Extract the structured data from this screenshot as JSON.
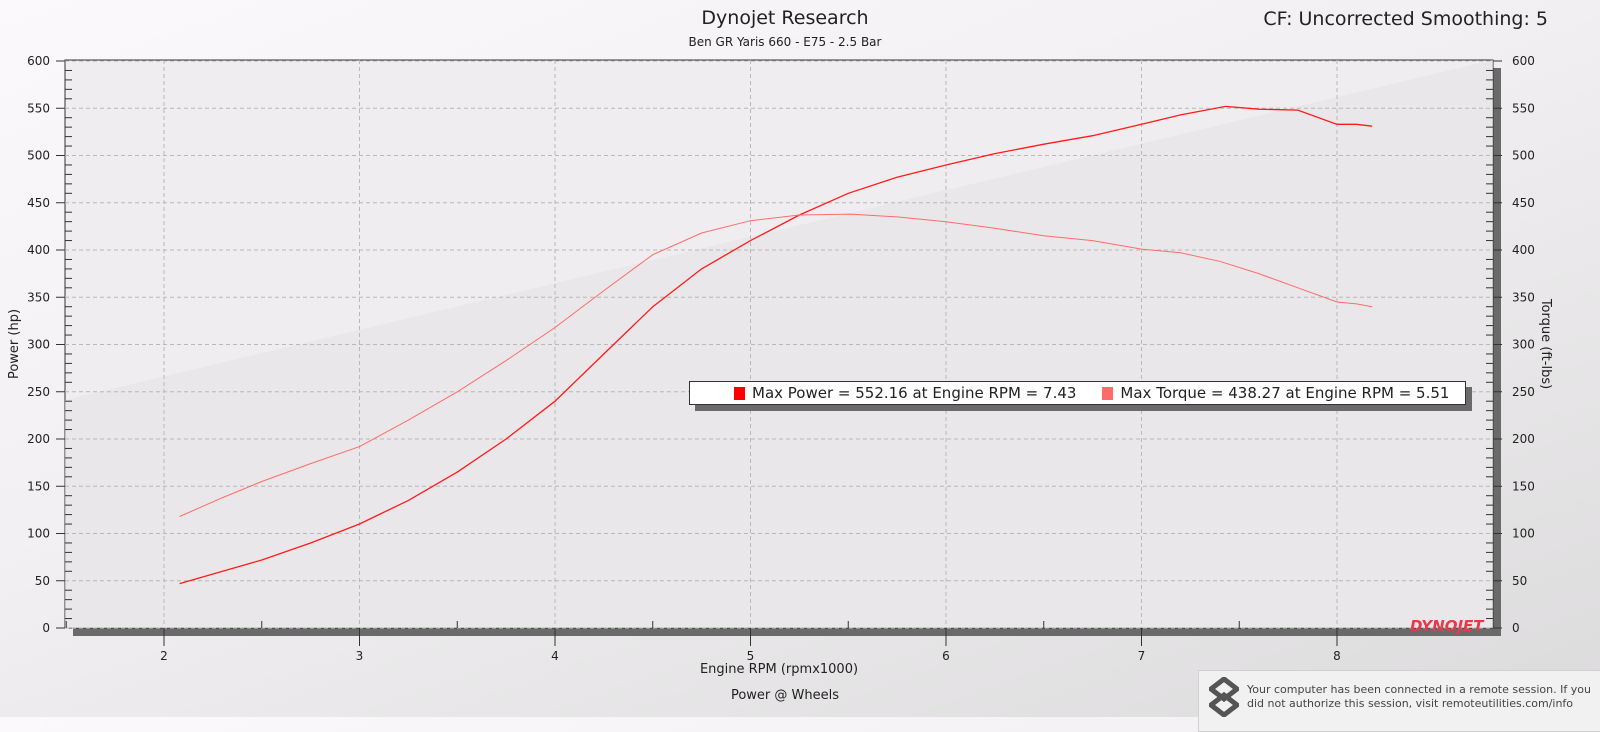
{
  "header": {
    "title": "Dynojet Research",
    "subtitle": "Ben GR Yaris 660 - E75 - 2.5 Bar",
    "cf_label": "CF: Uncorrected Smoothing: 5"
  },
  "footer": {
    "chart_caption": "Power @ Wheels"
  },
  "notice": {
    "text": "Your computer has been connected in a remote session. If you did not authorize this session, visit remoteutilities.com/info"
  },
  "logo": {
    "text": "DYNOJET"
  },
  "legend": {
    "power": "Max Power = 552.16 at Engine RPM = 7.43",
    "torque": "Max Torque = 438.27 at Engine RPM = 5.51"
  },
  "colors": {
    "power": "#ff1a1a",
    "torque": "#ff6b6b"
  },
  "chart_data": {
    "type": "line",
    "title": "Dynojet Research",
    "xlabel": "Engine RPM (rpmx1000)",
    "ylabel": "Power (hp)",
    "y2label": "Torque (ft-lbs)",
    "xlim": [
      1.49,
      8.8
    ],
    "ylim": [
      0,
      600
    ],
    "y2lim": [
      0,
      600
    ],
    "xticks": [
      2,
      3,
      4,
      5,
      6,
      7,
      8
    ],
    "yticks": [
      0,
      50,
      100,
      150,
      200,
      250,
      300,
      350,
      400,
      450,
      500,
      550,
      600
    ],
    "grid": true,
    "legend_placement": "center-right",
    "series": [
      {
        "name": "Power",
        "x": [
          2.08,
          2.3,
          2.5,
          2.75,
          3.0,
          3.25,
          3.5,
          3.75,
          4.0,
          4.25,
          4.5,
          4.75,
          5.0,
          5.25,
          5.5,
          5.75,
          6.0,
          6.25,
          6.5,
          6.75,
          7.0,
          7.2,
          7.43,
          7.6,
          7.8,
          8.0,
          8.1,
          8.18
        ],
        "y": [
          47,
          60,
          72,
          90,
          110,
          135,
          165,
          200,
          240,
          290,
          340,
          380,
          410,
          437,
          460,
          477,
          490,
          502,
          512,
          521,
          533,
          543,
          552,
          549,
          548,
          533,
          533,
          531
        ]
      },
      {
        "name": "Torque",
        "x": [
          2.08,
          2.3,
          2.5,
          2.75,
          3.0,
          3.25,
          3.5,
          3.75,
          4.0,
          4.25,
          4.5,
          4.75,
          5.0,
          5.25,
          5.51,
          5.75,
          6.0,
          6.25,
          6.5,
          6.75,
          7.0,
          7.2,
          7.4,
          7.6,
          7.8,
          8.0,
          8.1,
          8.18
        ],
        "y": [
          118,
          138,
          155,
          174,
          192,
          220,
          250,
          283,
          318,
          357,
          395,
          418,
          431,
          437,
          438,
          435,
          430,
          423,
          415,
          410,
          401,
          397,
          388,
          375,
          360,
          345,
          343,
          340
        ]
      }
    ]
  }
}
